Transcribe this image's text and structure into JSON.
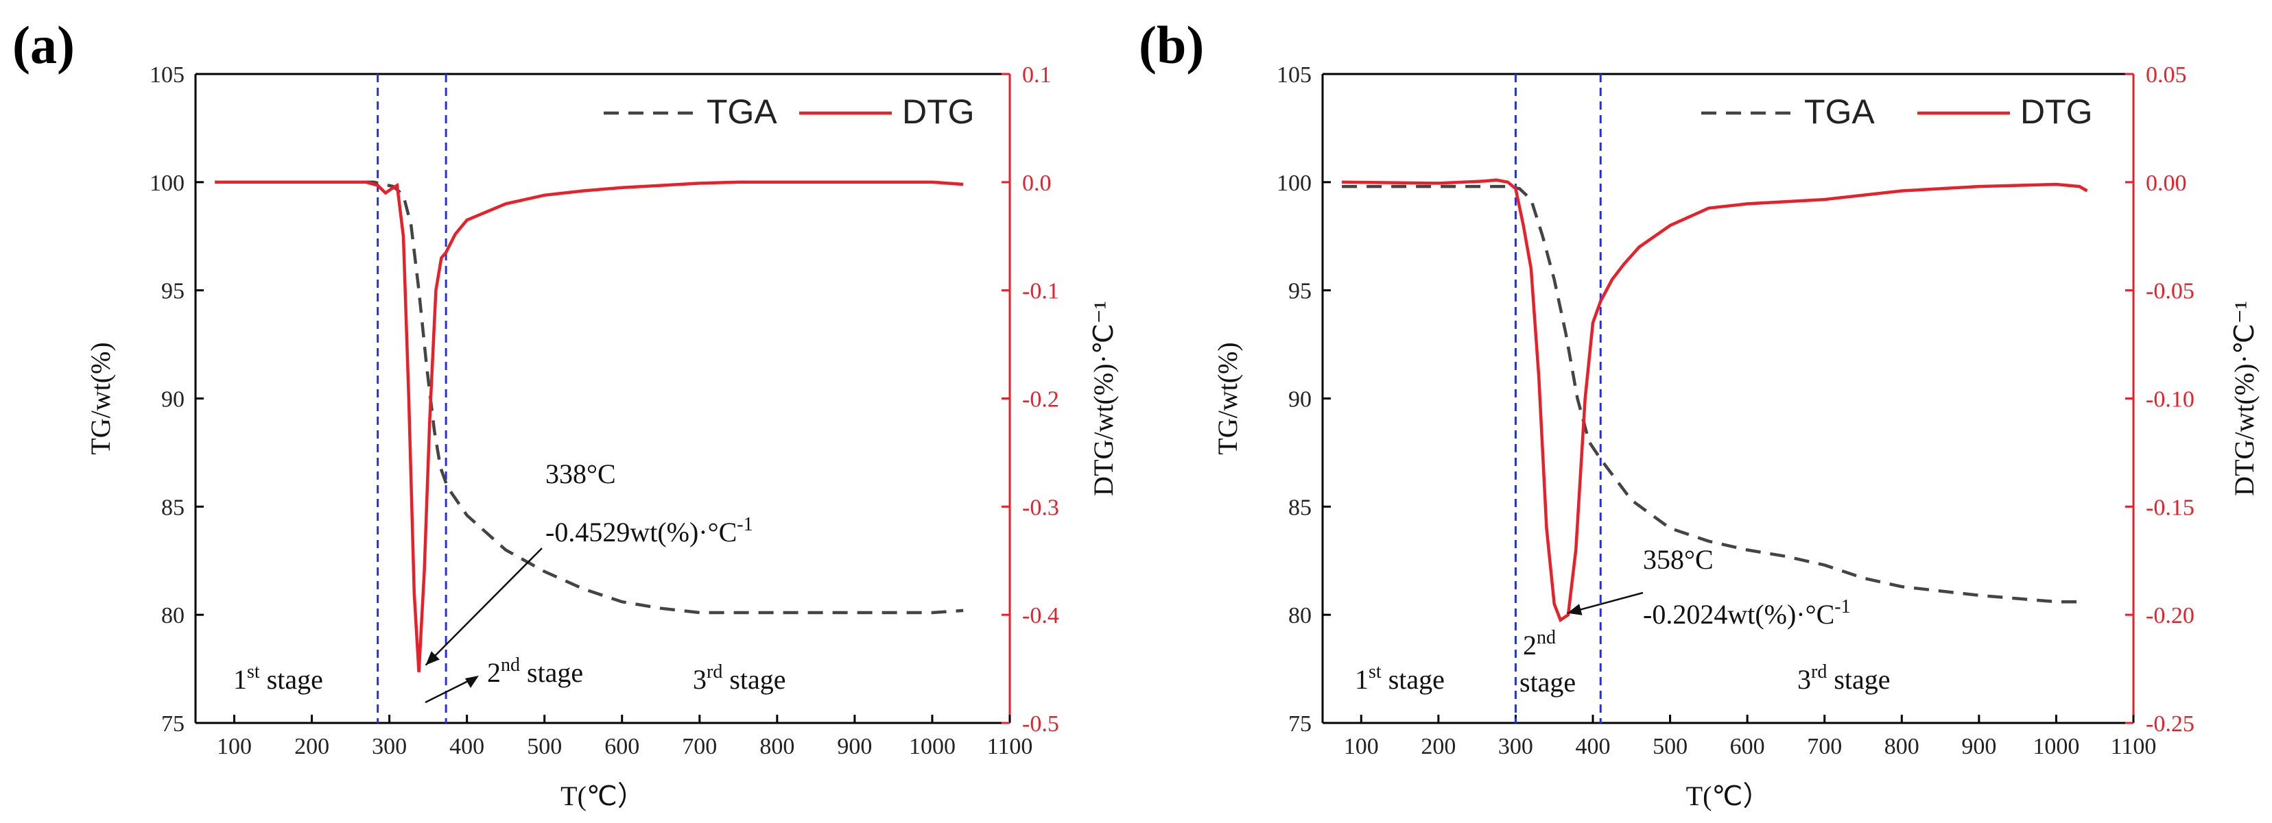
{
  "chart_data": [
    {
      "type": "line",
      "panel_label": "(a)",
      "title": "",
      "xlabel": "T(℃）",
      "ylabel": "TG/wt(%)",
      "y2label": "DTG/wt(%)·℃⁻¹",
      "xlim": [
        50,
        1100
      ],
      "ylim": [
        75,
        105
      ],
      "y2lim": [
        -0.5,
        0.1
      ],
      "xticks": [
        "100",
        "200",
        "300",
        "400",
        "500",
        "600",
        "700",
        "800",
        "900",
        "1000",
        "1100"
      ],
      "yticks": [
        "75",
        "80",
        "85",
        "90",
        "95",
        "100",
        "105"
      ],
      "y2ticks": [
        "-0.5",
        "-0.4",
        "-0.3",
        "-0.2",
        "-0.1",
        "0.0",
        "0.1"
      ],
      "legend": {
        "position": "top-right",
        "tga": "TGA",
        "dtg": "DTG"
      },
      "vlines": [
        285,
        373
      ],
      "series": [
        {
          "name": "TGA",
          "axis": "left",
          "color": "#444444",
          "x": [
            75,
            200,
            280,
            305,
            318,
            328,
            338,
            348,
            358,
            366,
            375,
            400,
            450,
            500,
            550,
            600,
            650,
            700,
            800,
            900,
            1000,
            1040
          ],
          "y": [
            100,
            100,
            100,
            99.8,
            99.4,
            98.0,
            95.0,
            91.5,
            88.5,
            86.8,
            85.9,
            84.6,
            83.0,
            82.0,
            81.2,
            80.6,
            80.3,
            80.1,
            80.1,
            80.1,
            80.1,
            80.2
          ]
        },
        {
          "name": "DTG",
          "axis": "right",
          "color": "#e8202a",
          "x": [
            75,
            200,
            270,
            285,
            295,
            303,
            310,
            318,
            325,
            332,
            338,
            345,
            352,
            360,
            367,
            373,
            385,
            400,
            450,
            500,
            550,
            600,
            650,
            700,
            750,
            800,
            900,
            1000,
            1040
          ],
          "y": [
            0,
            0,
            0,
            -0.003,
            -0.01,
            -0.006,
            -0.003,
            -0.05,
            -0.2,
            -0.38,
            -0.4529,
            -0.36,
            -0.22,
            -0.1,
            -0.07,
            -0.065,
            -0.048,
            -0.035,
            -0.02,
            -0.012,
            -0.008,
            -0.005,
            -0.003,
            -0.001,
            0,
            0,
            0,
            0,
            -0.002
          ]
        }
      ],
      "annotations": {
        "temp": "338°C",
        "value": "-0.4529wt(%)·°C",
        "value_sup": "-1",
        "peak": [
          338,
          -0.4529
        ]
      },
      "stages": [
        {
          "base": "1",
          "sup": "st",
          "word": " stage"
        },
        {
          "base": "2",
          "sup": "nd",
          "word": " stage"
        },
        {
          "base": "3",
          "sup": "rd",
          "word": " stage"
        }
      ]
    },
    {
      "type": "line",
      "panel_label": "(b)",
      "title": "",
      "xlabel": "T(℃）",
      "ylabel": "TG/wt(%)",
      "y2label": "DTG/wt(%)·℃⁻¹",
      "xlim": [
        50,
        1100
      ],
      "ylim": [
        75,
        105
      ],
      "y2lim": [
        -0.25,
        0.05
      ],
      "xticks": [
        "100",
        "200",
        "300",
        "400",
        "500",
        "600",
        "700",
        "800",
        "900",
        "1000",
        "1100"
      ],
      "yticks": [
        "75",
        "80",
        "85",
        "90",
        "95",
        "100",
        "105"
      ],
      "y2ticks": [
        "-0.25",
        "-0.20",
        "-0.15",
        "-0.10",
        "-0.05",
        "0.00",
        "0.05"
      ],
      "legend": {
        "position": "top-right",
        "tga": "TGA",
        "dtg": "DTG"
      },
      "vlines": [
        300,
        410
      ],
      "series": [
        {
          "name": "TGA",
          "axis": "left",
          "color": "#444444",
          "x": [
            75,
            200,
            290,
            305,
            320,
            335,
            350,
            365,
            380,
            395,
            410,
            450,
            500,
            550,
            600,
            650,
            700,
            750,
            800,
            900,
            1000,
            1030
          ],
          "y": [
            99.8,
            99.8,
            99.8,
            99.7,
            99.2,
            97.5,
            95.5,
            93.0,
            90.0,
            88.0,
            87.2,
            85.3,
            84.0,
            83.4,
            83.0,
            82.7,
            82.3,
            81.7,
            81.3,
            80.9,
            80.6,
            80.6
          ]
        },
        {
          "name": "DTG",
          "axis": "right",
          "color": "#e8202a",
          "x": [
            75,
            200,
            260,
            275,
            290,
            300,
            310,
            320,
            330,
            340,
            350,
            358,
            368,
            378,
            390,
            400,
            410,
            425,
            440,
            460,
            500,
            550,
            600,
            700,
            800,
            900,
            1000,
            1030,
            1040
          ],
          "y": [
            0,
            -0.0005,
            0.0005,
            0.001,
            0,
            -0.003,
            -0.02,
            -0.04,
            -0.09,
            -0.16,
            -0.195,
            -0.2024,
            -0.2,
            -0.17,
            -0.1,
            -0.065,
            -0.055,
            -0.045,
            -0.038,
            -0.03,
            -0.02,
            -0.012,
            -0.01,
            -0.008,
            -0.004,
            -0.002,
            -0.001,
            -0.002,
            -0.004
          ]
        }
      ],
      "annotations": {
        "temp": "358°C",
        "value": "-0.2024wt(%)·°C",
        "value_sup": "-1",
        "peak": [
          358,
          -0.2024
        ]
      },
      "stages": [
        {
          "base": "1",
          "sup": "st",
          "word": " stage"
        },
        {
          "base": "2",
          "sup": "nd",
          "word": "stage"
        },
        {
          "base": "3",
          "sup": "rd",
          "word": " stage"
        }
      ]
    }
  ]
}
